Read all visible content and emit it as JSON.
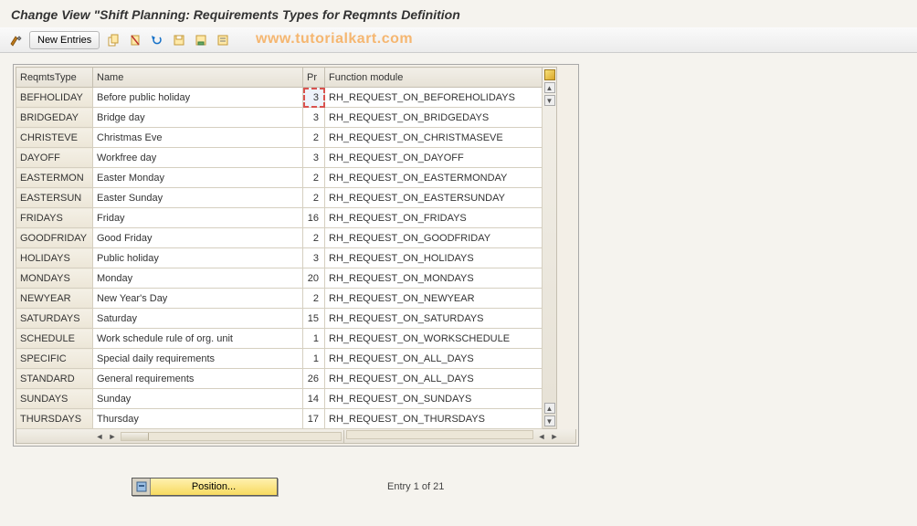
{
  "header": {
    "title": "Change View \"Shift Planning: Requirements Types for Reqmnts Definition"
  },
  "toolbar": {
    "new_entries_label": "New Entries"
  },
  "watermark": "www.tutorialkart.com",
  "table": {
    "columns": {
      "type": "ReqmtsType",
      "name": "Name",
      "pr": "Pr",
      "fm": "Function module"
    },
    "rows": [
      {
        "type": "BEFHOLIDAY",
        "name": "Before public holiday",
        "pr": "3",
        "fm": "RH_REQUEST_ON_BEFOREHOLIDAYS",
        "selected": true
      },
      {
        "type": "BRIDGEDAY",
        "name": "Bridge day",
        "pr": "3",
        "fm": "RH_REQUEST_ON_BRIDGEDAYS"
      },
      {
        "type": "CHRISTEVE",
        "name": "Christmas Eve",
        "pr": "2",
        "fm": "RH_REQUEST_ON_CHRISTMASEVE"
      },
      {
        "type": "DAYOFF",
        "name": "Workfree day",
        "pr": "3",
        "fm": "RH_REQUEST_ON_DAYOFF"
      },
      {
        "type": "EASTERMON",
        "name": "Easter Monday",
        "pr": "2",
        "fm": "RH_REQUEST_ON_EASTERMONDAY"
      },
      {
        "type": "EASTERSUN",
        "name": "Easter Sunday",
        "pr": "2",
        "fm": "RH_REQUEST_ON_EASTERSUNDAY"
      },
      {
        "type": "FRIDAYS",
        "name": "Friday",
        "pr": "16",
        "fm": "RH_REQUEST_ON_FRIDAYS"
      },
      {
        "type": "GOODFRIDAY",
        "name": "Good Friday",
        "pr": "2",
        "fm": "RH_REQUEST_ON_GOODFRIDAY"
      },
      {
        "type": "HOLIDAYS",
        "name": "Public holiday",
        "pr": "3",
        "fm": "RH_REQUEST_ON_HOLIDAYS"
      },
      {
        "type": "MONDAYS",
        "name": "Monday",
        "pr": "20",
        "fm": "RH_REQUEST_ON_MONDAYS"
      },
      {
        "type": "NEWYEAR",
        "name": "New Year's Day",
        "pr": "2",
        "fm": "RH_REQUEST_ON_NEWYEAR"
      },
      {
        "type": "SATURDAYS",
        "name": "Saturday",
        "pr": "15",
        "fm": "RH_REQUEST_ON_SATURDAYS"
      },
      {
        "type": "SCHEDULE",
        "name": "Work schedule rule of org. unit",
        "pr": "1",
        "fm": "RH_REQUEST_ON_WORKSCHEDULE"
      },
      {
        "type": "SPECIFIC",
        "name": "Special daily requirements",
        "pr": "1",
        "fm": "RH_REQUEST_ON_ALL_DAYS"
      },
      {
        "type": "STANDARD",
        "name": "General requirements",
        "pr": "26",
        "fm": "RH_REQUEST_ON_ALL_DAYS"
      },
      {
        "type": "SUNDAYS",
        "name": "Sunday",
        "pr": "14",
        "fm": "RH_REQUEST_ON_SUNDAYS"
      },
      {
        "type": "THURSDAYS",
        "name": "Thursday",
        "pr": "17",
        "fm": "RH_REQUEST_ON_THURSDAYS"
      }
    ]
  },
  "footer": {
    "position_label": "Position...",
    "entry_text": "Entry 1 of 21"
  }
}
